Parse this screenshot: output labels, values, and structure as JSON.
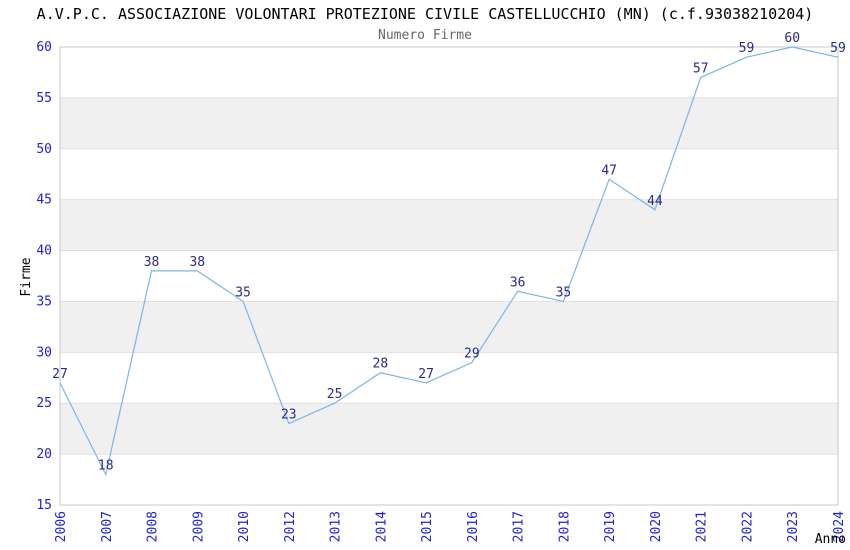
{
  "header": {
    "title": "A.V.P.C. ASSOCIAZIONE VOLONTARI PROTEZIONE CIVILE CASTELLUCCHIO (MN) (c.f.93038210204)",
    "subtitle": "Numero Firme"
  },
  "chart_data": {
    "type": "line",
    "title": "A.V.P.C. ASSOCIAZIONE VOLONTARI PROTEZIONE CIVILE CASTELLUCCHIO (MN) (c.f.93038210204)",
    "subtitle": "Numero Firme",
    "xlabel": "Anno",
    "ylabel": "Firme",
    "categories": [
      "2006",
      "2007",
      "2008",
      "2009",
      "2010",
      "2012",
      "2013",
      "2014",
      "2015",
      "2016",
      "2017",
      "2018",
      "2019",
      "2020",
      "2021",
      "2022",
      "2023",
      "2024"
    ],
    "values": [
      27,
      18,
      38,
      38,
      35,
      23,
      25,
      28,
      27,
      29,
      36,
      35,
      47,
      44,
      57,
      59,
      60,
      59
    ],
    "ylim": [
      15,
      60
    ],
    "ytick_step": 5,
    "yticks": [
      15,
      20,
      25,
      30,
      35,
      40,
      45,
      50,
      55,
      60
    ],
    "grid": "horizontal-alternating-bands",
    "band_intervals": [
      [
        20,
        25
      ],
      [
        30,
        35
      ],
      [
        40,
        45
      ],
      [
        50,
        55
      ]
    ],
    "legend_position": "none",
    "data_labels_visible": true,
    "x_tick_rotation": 90,
    "colors": {
      "line": "#7db4e6",
      "band_fill": "#f0f0f0",
      "band_edge": "#e0e0e0",
      "plot_border": "#c9c9c9",
      "axis_tick_label": "#2222cc",
      "value_label": "#2b2b85",
      "title": "#000000",
      "subtitle": "#666666",
      "background": "#ffffff"
    }
  }
}
